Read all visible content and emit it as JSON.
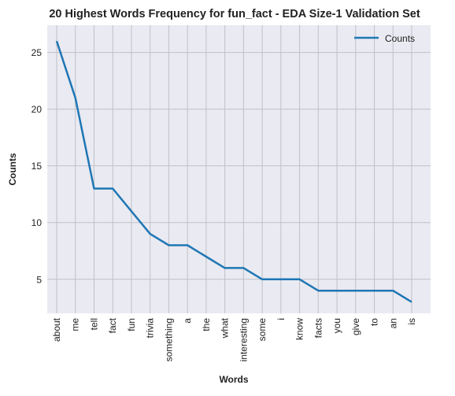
{
  "chart_data": {
    "type": "line",
    "title": "20 Highest Words Frequency for fun_fact - EDA Size-1 Validation Set",
    "xlabel": "Words",
    "ylabel": "Counts",
    "categories": [
      "about",
      "me",
      "tell",
      "fact",
      "fun",
      "trivia",
      "something",
      "a",
      "the",
      "what",
      "interesting",
      "some",
      "i",
      "know",
      "facts",
      "you",
      "give",
      "to",
      "an",
      "is"
    ],
    "series": [
      {
        "name": "Counts",
        "values": [
          26,
          21,
          13,
          13,
          11,
          9,
          8,
          8,
          7,
          6,
          6,
          5,
          5,
          5,
          4,
          4,
          4,
          4,
          4,
          3
        ],
        "color": "#1f77b4"
      }
    ],
    "ylim": [
      2.0,
      27.4
    ],
    "yticks": [
      5,
      10,
      15,
      20,
      25
    ],
    "grid": true,
    "legend_position": "top-right",
    "background": "#eaeaf2",
    "grid_color": "#c0c0c6"
  }
}
